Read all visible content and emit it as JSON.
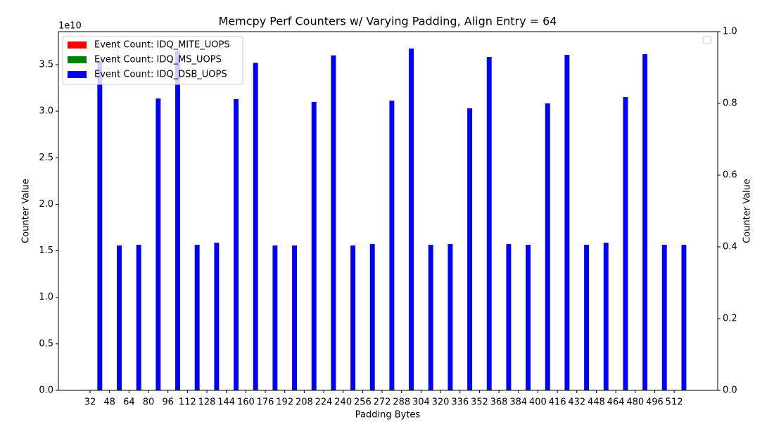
{
  "chart_data": {
    "type": "bar",
    "title": "Memcpy Perf Counters w/ Varying Padding, Align Entry = 64",
    "xlabel": "Padding Bytes",
    "ylabel": "Counter Value",
    "y2label": "Counter Value",
    "y_offset_label": "1e10",
    "categories": [
      "32",
      "48",
      "64",
      "80",
      "96",
      "112",
      "128",
      "144",
      "160",
      "176",
      "192",
      "208",
      "224",
      "240",
      "256",
      "272",
      "288",
      "304",
      "320",
      "336",
      "352",
      "368",
      "384",
      "400",
      "416",
      "432",
      "448",
      "464",
      "480",
      "496",
      "512"
    ],
    "series": [
      {
        "name": "Event Count: IDQ_MITE_UOPS",
        "color": "#ff0000",
        "values": [
          0,
          0,
          0,
          0,
          0,
          0,
          0,
          0,
          0,
          0,
          0,
          0,
          0,
          0,
          0,
          0,
          0,
          0,
          0,
          0,
          0,
          0,
          0,
          0,
          0,
          0,
          0,
          0,
          0,
          0,
          0
        ]
      },
      {
        "name": "Event Count: IDQ_MS_UOPS",
        "color": "#008000",
        "values": [
          0,
          0,
          0,
          0,
          0,
          0,
          0,
          0,
          0,
          0,
          0,
          0,
          0,
          0,
          0,
          0,
          0,
          0,
          0,
          0,
          0,
          0,
          0,
          0,
          0,
          0,
          0,
          0,
          0,
          0,
          0
        ]
      },
      {
        "name": "Event Count: IDQ_DSB_UOPS",
        "color": "#0000ff",
        "values": [
          35450000000,
          15570000000,
          15650000000,
          31370000000,
          36500000000,
          15650000000,
          15870000000,
          31300000000,
          35200000000,
          15570000000,
          15570000000,
          31000000000,
          36000000000,
          15570000000,
          15720000000,
          31140000000,
          36740000000,
          15650000000,
          15720000000,
          30310000000,
          35830000000,
          15720000000,
          15650000000,
          30840000000,
          36060000000,
          15650000000,
          15870000000,
          31520000000,
          36130000000,
          15650000000,
          15650000000
        ]
      }
    ],
    "ylim": [
      0,
      38550000000
    ],
    "yticks": [
      {
        "value": 0,
        "label": "0.0"
      },
      {
        "value": 5000000000,
        "label": "0.5"
      },
      {
        "value": 10000000000,
        "label": "1.0"
      },
      {
        "value": 15000000000,
        "label": "1.5"
      },
      {
        "value": 20000000000,
        "label": "2.0"
      },
      {
        "value": 25000000000,
        "label": "2.5"
      },
      {
        "value": 30000000000,
        "label": "3.0"
      },
      {
        "value": 35000000000,
        "label": "3.5"
      }
    ],
    "y2lim": [
      0,
      1
    ],
    "y2ticks": [
      {
        "value": 0,
        "label": "0.0"
      },
      0.2,
      0.4,
      0.6,
      0.8,
      {
        "value": 1,
        "label": "1.0"
      }
    ],
    "legend": "upper left"
  }
}
